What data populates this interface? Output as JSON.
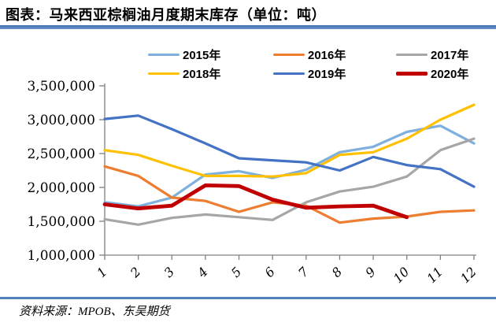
{
  "header": {
    "title": "图表：马来西亚棕榈油月度期末库存（单位：吨）"
  },
  "footer": {
    "source": "资料来源：MPOB、东吴期货"
  },
  "colors": {
    "divider_blue": "#4f81bd",
    "axis_gray": "#808080",
    "label_black": "#000000"
  },
  "chart_data": {
    "type": "line",
    "title": "马来西亚棕榈油月度期末库存",
    "unit": "吨",
    "xlabel": "",
    "ylabel": "",
    "grid": false,
    "legend_position": "top",
    "categories": [
      "1",
      "2",
      "3",
      "4",
      "5",
      "6",
      "7",
      "8",
      "9",
      "10",
      "11",
      "12"
    ],
    "ylim": [
      1000000,
      3500000
    ],
    "y_ticks": [
      {
        "value": 3500000,
        "label": "3,500,000"
      },
      {
        "value": 3000000,
        "label": "3,000,000"
      },
      {
        "value": 2500000,
        "label": "2,500,000"
      },
      {
        "value": 2000000,
        "label": "2,000,000"
      },
      {
        "value": 1500000,
        "label": "1,500,000"
      },
      {
        "value": 1000000,
        "label": "1,000,000"
      }
    ],
    "series": [
      {
        "name": "2015年",
        "color": "#7eb0dd",
        "width": 3.2,
        "values": [
          1780000,
          1720000,
          1850000,
          2190000,
          2240000,
          2140000,
          2260000,
          2520000,
          2600000,
          2820000,
          2910000,
          2650000
        ]
      },
      {
        "name": "2016年",
        "color": "#ed7d31",
        "width": 3.2,
        "values": [
          2310000,
          2170000,
          1850000,
          1800000,
          1640000,
          1780000,
          1730000,
          1480000,
          1540000,
          1570000,
          1640000,
          1660000
        ]
      },
      {
        "name": "2017年",
        "color": "#a6a6a6",
        "width": 3.2,
        "values": [
          1530000,
          1450000,
          1550000,
          1600000,
          1560000,
          1520000,
          1780000,
          1940000,
          2010000,
          2160000,
          2550000,
          2720000
        ]
      },
      {
        "name": "2018年",
        "color": "#ffc000",
        "width": 3.2,
        "values": [
          2550000,
          2480000,
          2320000,
          2170000,
          2170000,
          2160000,
          2210000,
          2480000,
          2520000,
          2720000,
          3000000,
          3220000
        ]
      },
      {
        "name": "2019年",
        "color": "#4472c4",
        "width": 3.2,
        "values": [
          3010000,
          3060000,
          2860000,
          2650000,
          2430000,
          2400000,
          2370000,
          2250000,
          2450000,
          2330000,
          2270000,
          2010000
        ]
      },
      {
        "name": "2020年",
        "color": "#c00000",
        "width": 4.8,
        "values": [
          1750000,
          1690000,
          1730000,
          2030000,
          2020000,
          1820000,
          1700000,
          1720000,
          1730000,
          1560000
        ]
      }
    ]
  }
}
